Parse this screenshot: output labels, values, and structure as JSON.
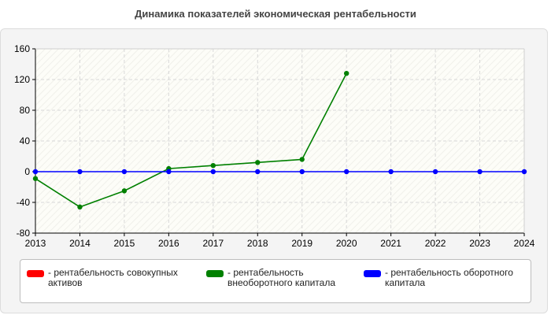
{
  "title": "Динамика показателей экономическая рентабельности",
  "chart_data": {
    "type": "line",
    "x": [
      2013,
      2014,
      2015,
      2016,
      2017,
      2018,
      2019,
      2020,
      2021,
      2022,
      2023,
      2024
    ],
    "xlim": [
      2013,
      2024
    ],
    "ylim": [
      -80,
      160
    ],
    "yticks": [
      -80,
      -40,
      0,
      40,
      80,
      120,
      160
    ],
    "grid": true,
    "legend_position": "bottom",
    "series": [
      {
        "name": "- рентабельность совокупных активов",
        "color": "#ff0000",
        "values": [
          null,
          null,
          null,
          null,
          null,
          null,
          null,
          null,
          null,
          null,
          null,
          null
        ]
      },
      {
        "name": "- рентабельность внеоборотного капитала",
        "color": "#008000",
        "values": [
          -9,
          -46,
          -25,
          4,
          8,
          12,
          16,
          128,
          null,
          null,
          null,
          null
        ]
      },
      {
        "name": "- рентабельность оборотного капитала",
        "color": "#0000ff",
        "values": [
          0,
          0,
          0,
          0,
          0,
          0,
          0,
          0,
          0,
          0,
          0,
          0
        ]
      }
    ]
  }
}
